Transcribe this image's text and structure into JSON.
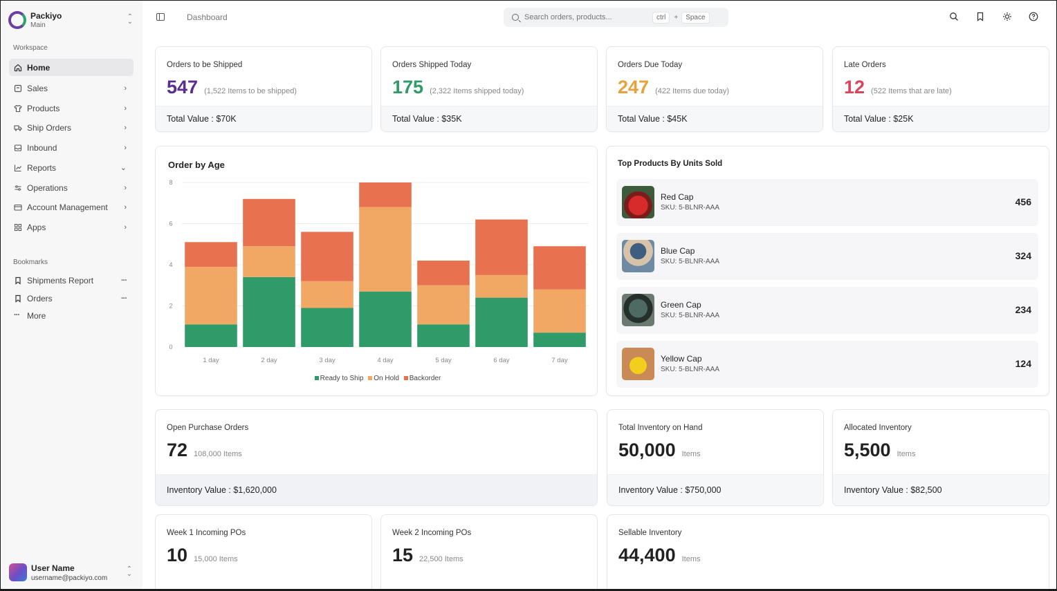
{
  "brand": {
    "name": "Packiyo",
    "sub": "Main"
  },
  "sidebar": {
    "workspace_label": "Workspace",
    "items": [
      {
        "label": "Home",
        "icon": "home-icon"
      },
      {
        "label": "Sales",
        "icon": "sales-icon"
      },
      {
        "label": "Products",
        "icon": "shirt-icon"
      },
      {
        "label": "Ship Orders",
        "icon": "truck-icon"
      },
      {
        "label": "Inbound",
        "icon": "inbox-icon"
      },
      {
        "label": "Reports",
        "icon": "chart-icon"
      },
      {
        "label": "Operations",
        "icon": "sliders-icon"
      },
      {
        "label": "Account Management",
        "icon": "card-icon"
      },
      {
        "label": "Apps",
        "icon": "grid-icon"
      }
    ],
    "bookmarks_label": "Bookmarks",
    "bookmarks": [
      {
        "label": "Shipments Report"
      },
      {
        "label": "Orders"
      }
    ],
    "more_label": "More"
  },
  "user": {
    "name": "User Name",
    "email": "username@packiyo.com"
  },
  "header": {
    "breadcrumb": "Dashboard",
    "search_placeholder": "Search orders, products...",
    "kbd_ctrl": "ctrl",
    "kbd_plus": "+",
    "kbd_space": "Space"
  },
  "stats": [
    {
      "title": "Orders to be Shipped",
      "value": "547",
      "sub": "(1,522 Items to be shipped)",
      "footer": "Total Value : $70K",
      "color": "#5a2d91"
    },
    {
      "title": "Orders Shipped Today",
      "value": "175",
      "sub": "(2,322 Items shipped today)",
      "footer": "Total Value : $35K",
      "color": "#2f9b68"
    },
    {
      "title": "Orders Due Today",
      "value": "247",
      "sub": "(422 Items due today)",
      "footer": "Total Value : $45K",
      "color": "#e8a23a"
    },
    {
      "title": "Late Orders",
      "value": "12",
      "sub": "(522 Items that are late)",
      "footer": "Total Value : $25K",
      "color": "#d8465c"
    }
  ],
  "chart_data": {
    "type": "bar",
    "stacked": true,
    "title": "Order by Age",
    "categories": [
      "1 day",
      "2 day",
      "3 day",
      "4 day",
      "5 day",
      "6 day",
      "7 day"
    ],
    "series": [
      {
        "name": "Ready to Ship",
        "color": "#2f9b68",
        "values": [
          1.1,
          3.4,
          1.9,
          2.7,
          1.1,
          2.4,
          0.7
        ]
      },
      {
        "name": "On Hold",
        "color": "#f2a865",
        "values": [
          2.8,
          1.5,
          1.3,
          4.1,
          1.9,
          1.1,
          2.1
        ]
      },
      {
        "name": "Backorder",
        "color": "#e87150",
        "values": [
          1.2,
          2.3,
          2.4,
          1.2,
          1.2,
          2.7,
          2.1
        ]
      }
    ],
    "ylim": [
      0,
      8
    ],
    "yticks": [
      "0",
      "2",
      "4",
      "6",
      "8"
    ],
    "grid": true,
    "legend": "bottom"
  },
  "top_products": {
    "title": "Top Products By Units Sold",
    "items": [
      {
        "name": "Red Cap",
        "sku": "SKU: 5-BLNR-AAA",
        "units": "456"
      },
      {
        "name": "Blue Cap",
        "sku": "SKU: 5-BLNR-AAA",
        "units": "324"
      },
      {
        "name": "Green Cap",
        "sku": "SKU: 5-BLNR-AAA",
        "units": "234"
      },
      {
        "name": "Yellow Cap",
        "sku": "SKU: 5-BLNR-AAA",
        "units": "124"
      }
    ]
  },
  "inventory": {
    "open_po": {
      "title": "Open Purchase Orders",
      "value": "72",
      "sub": "108,000 Items",
      "footer": "Inventory Value : $1,620,000"
    },
    "on_hand": {
      "title": "Total Inventory on Hand",
      "value": "50,000",
      "sub": "Items",
      "footer": "Inventory Value : $750,000"
    },
    "allocated": {
      "title": "Allocated Inventory",
      "value": "5,500",
      "sub": "Items",
      "footer": "Inventory Value : $82,500"
    },
    "week1": {
      "title": "Week 1 Incoming POs",
      "value": "10",
      "sub": "15,000 Items"
    },
    "week2": {
      "title": "Week 2 Incoming POs",
      "value": "15",
      "sub": "22,500 Items"
    },
    "sellable": {
      "title": "Sellable Inventory",
      "value": "44,400",
      "sub": "Items"
    }
  }
}
